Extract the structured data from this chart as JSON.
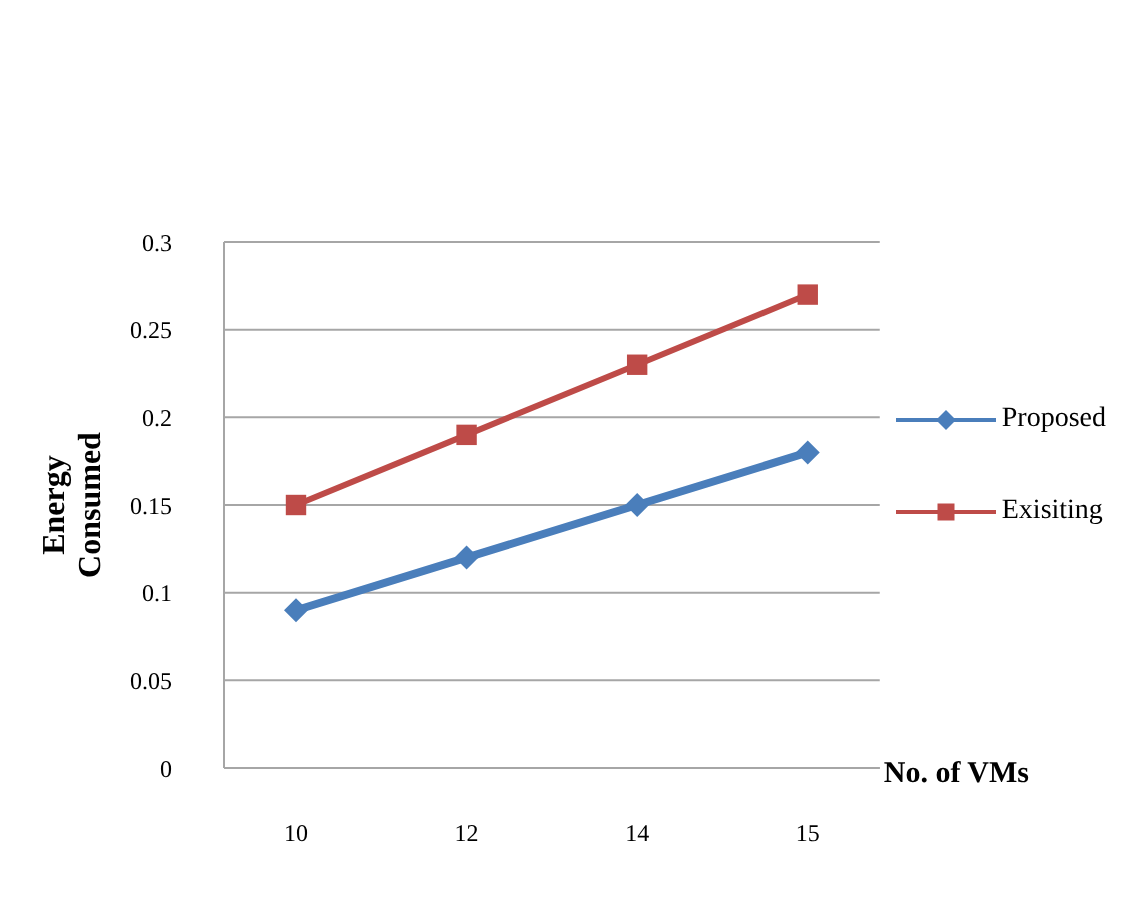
{
  "chart_data": {
    "type": "line",
    "categories": [
      "10",
      "12",
      "14",
      "15"
    ],
    "xlabel": "No. of VMs",
    "ylabel": "Energy Consumed",
    "series": [
      {
        "name": "Proposed",
        "color": "#4a7ebb",
        "values": [
          0.09,
          0.12,
          0.15,
          0.18
        ],
        "marker": "diamond"
      },
      {
        "name": "Exisiting",
        "color": "#be4b48",
        "values": [
          0.15,
          0.19,
          0.23,
          0.27
        ],
        "marker": "square"
      }
    ],
    "ylim": [
      0,
      0.3
    ],
    "yticks": [
      0,
      0.05,
      0.1,
      0.15,
      0.2,
      0.25,
      0.3
    ],
    "grid": "y",
    "legend": "right"
  }
}
